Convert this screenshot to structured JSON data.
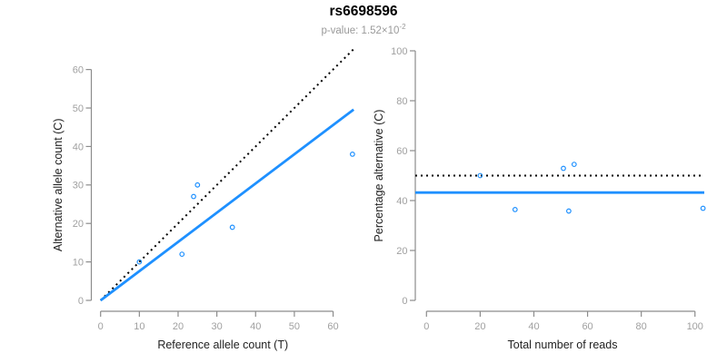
{
  "figure": {
    "title": "rs6698596",
    "pvalue_prefix": "p-value: 1.52×10",
    "pvalue_exponent": "-2",
    "colors": {
      "accent_blue": "#1E90FF",
      "line_black": "#000000",
      "axis_line_gray": "#8c8c8c",
      "tick_label_gray": "#a0a0a0",
      "axis_title_color": "#222222",
      "subtitle_gray": "#9a9a9a"
    }
  },
  "chart_data": [
    {
      "type": "scatter",
      "panel": "allele-counts",
      "xlabel": "Reference allele count (T)",
      "ylabel": "Alternative allele count (C)",
      "xlim": [
        0,
        65.5
      ],
      "ylim": [
        0,
        65.5
      ],
      "xticks": [
        0,
        10,
        20,
        30,
        40,
        50,
        60
      ],
      "yticks": [
        0,
        10,
        20,
        30,
        40,
        50,
        60
      ],
      "points": [
        [
          10,
          10
        ],
        [
          21,
          12
        ],
        [
          24,
          27
        ],
        [
          25,
          30
        ],
        [
          34,
          19
        ],
        [
          65,
          38
        ]
      ],
      "lines": [
        {
          "name": "identity-line",
          "kind": "segment",
          "from": [
            0,
            0
          ],
          "to": [
            65.3,
            65.3
          ],
          "style": "dotted",
          "color": "#000000",
          "width": 2
        },
        {
          "name": "regression-line",
          "kind": "segment",
          "from": [
            0,
            0
          ],
          "to": [
            65.3,
            49.6
          ],
          "style": "solid",
          "color": "#1E90FF",
          "width": 2.8
        }
      ]
    },
    {
      "type": "scatter",
      "panel": "percentage-vs-reads",
      "xlabel": "Total number of reads",
      "ylabel": "Percentage alternative (C)",
      "xlim": [
        0,
        105.5
      ],
      "ylim": [
        0,
        100
      ],
      "xticks": [
        0,
        20,
        40,
        60,
        80,
        100
      ],
      "yticks": [
        0,
        20,
        40,
        60,
        80,
        100
      ],
      "points": [
        [
          20,
          50
        ],
        [
          33,
          36.4
        ],
        [
          51,
          52.9
        ],
        [
          55,
          54.5
        ],
        [
          53,
          35.8
        ],
        [
          103,
          36.9
        ]
      ],
      "lines": [
        {
          "name": "expected-50pct-line",
          "kind": "hline",
          "y": 50,
          "style": "dotted",
          "color": "#000000",
          "width": 2
        },
        {
          "name": "mean-percentage-line",
          "kind": "hline",
          "y": 43.2,
          "style": "solid",
          "color": "#1E90FF",
          "width": 2.8
        }
      ]
    }
  ]
}
